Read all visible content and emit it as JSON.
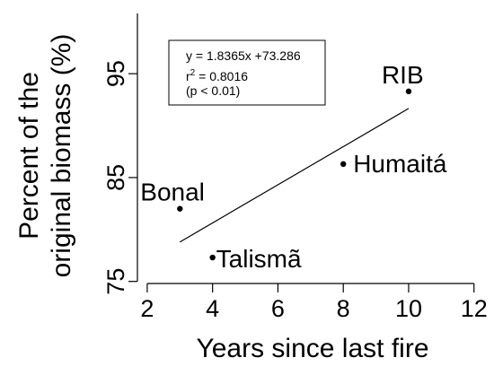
{
  "chart_data": {
    "type": "scatter",
    "xlabel": "Years since last fire",
    "ylabel_lines": [
      "Percent of the",
      "original biomass (%)"
    ],
    "xlim": [
      1.7,
      12.2
    ],
    "ylim": [
      74.8,
      100.8
    ],
    "x_ticks": [
      2,
      4,
      6,
      8,
      10,
      12
    ],
    "y_ticks": [
      75,
      85,
      95
    ],
    "grid": false,
    "points": [
      {
        "name": "Bonal",
        "x": 3,
        "y": 82.0
      },
      {
        "name": "Talismã",
        "x": 4,
        "y": 77.3
      },
      {
        "name": "Humaitá",
        "x": 8,
        "y": 86.3
      },
      {
        "name": "RIB",
        "x": 10,
        "y": 93.3
      }
    ],
    "fit": {
      "slope": 1.8365,
      "intercept": 73.286,
      "x_range": [
        3,
        10
      ]
    },
    "annotation": {
      "equation": "y = 1.8365x +73.286",
      "r2_prefix": "r",
      "r2_sup": "2",
      "r2_value": " = 0.8016",
      "p_value": "(p < 0.01)"
    }
  }
}
